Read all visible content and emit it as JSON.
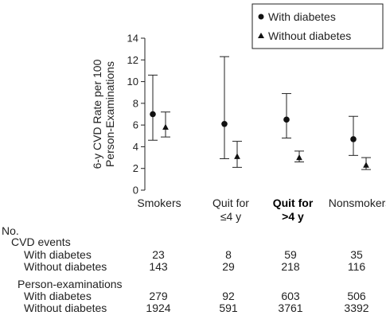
{
  "chart_data": {
    "type": "scatter",
    "ylabel": "6-y CVD Rate per 100 Person-Examinations",
    "ylabel_lines": [
      "6-y CVD Rate per 100",
      "Person-Examinations"
    ],
    "ylim": [
      0,
      14
    ],
    "yticks": [
      "0",
      "2",
      "4",
      "6",
      "8",
      "10",
      "12",
      "14"
    ],
    "categories": [
      {
        "lines": [
          "Smokers"
        ],
        "bold": false
      },
      {
        "lines": [
          "Quit for",
          "≤4 y"
        ],
        "bold": false
      },
      {
        "lines": [
          "Quit for",
          ">4 y"
        ],
        "bold": true
      },
      {
        "lines": [
          "Nonsmokers"
        ],
        "bold": false
      }
    ],
    "series": [
      {
        "name": "With diabetes",
        "marker": "circle",
        "values": [
          7.0,
          6.1,
          6.5,
          4.7
        ],
        "lower": [
          4.6,
          2.9,
          4.8,
          3.2
        ],
        "upper": [
          10.6,
          12.3,
          8.9,
          6.8
        ]
      },
      {
        "name": "Without diabetes",
        "marker": "triangle",
        "values": [
          5.8,
          3.1,
          3.0,
          2.3
        ],
        "lower": [
          4.9,
          2.1,
          2.6,
          1.9
        ],
        "upper": [
          7.2,
          4.5,
          3.6,
          3.0
        ]
      }
    ],
    "legend": "top-right",
    "grid": false
  },
  "table": {
    "no_label": "No.",
    "sections": [
      {
        "title": "CVD events",
        "rows": [
          {
            "label": "With diabetes",
            "values": [
              "23",
              "8",
              "59",
              "35"
            ]
          },
          {
            "label": "Without diabetes",
            "values": [
              "143",
              "29",
              "218",
              "116"
            ]
          }
        ]
      },
      {
        "title": "Person-examinations",
        "rows": [
          {
            "label": "With diabetes",
            "values": [
              "279",
              "92",
              "603",
              "506"
            ]
          },
          {
            "label": "Without diabetes",
            "values": [
              "1924",
              "591",
              "3761",
              "3392"
            ]
          }
        ]
      }
    ]
  }
}
